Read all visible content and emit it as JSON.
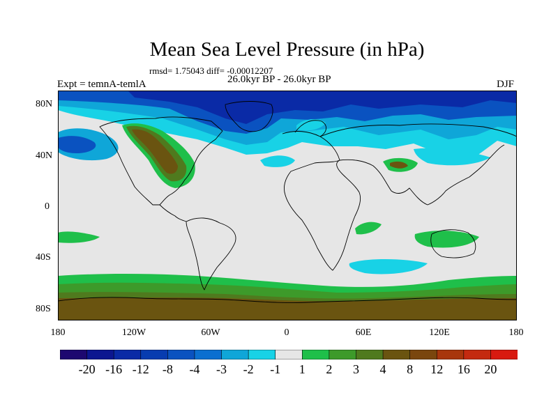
{
  "title": "Mean Sea Level Pressure (in hPa)",
  "stats": "rmsd= 1.75043 diff= -0.00012207",
  "period": "26.0kyr BP - 26.0kyr BP",
  "experiment": "Expt = temnA-temlA",
  "season": "DJF",
  "lat_labels": [
    "80N",
    "40N",
    "0",
    "40S",
    "80S"
  ],
  "lon_labels": [
    "180",
    "120W",
    "60W",
    "0",
    "60E",
    "120E",
    "180"
  ],
  "colorbar": {
    "labels": [
      "-20",
      "-16",
      "-12",
      "-8",
      "-4",
      "-3",
      "-2",
      "-1",
      "1",
      "2",
      "3",
      "4",
      "8",
      "12",
      "16",
      "20"
    ],
    "colors": [
      "#1d0870",
      "#0c1690",
      "#0a2aa6",
      "#073cb0",
      "#0a52c0",
      "#0b6fd0",
      "#0fa6d8",
      "#18d2e6",
      "#e6e6e6",
      "#1fbf4a",
      "#3d9a2a",
      "#4f7a1e",
      "#6a5410",
      "#7a460e",
      "#a8360c",
      "#c42a10",
      "#d81a10"
    ]
  },
  "colors": {
    "neutral": "#e6e6e6",
    "blue_mid": "#0a52c0",
    "blue_dark": "#0a2aa6",
    "cyan": "#18d2e6",
    "sky": "#0fa6d8",
    "green": "#1fbf4a",
    "green_dark": "#3d9a2a",
    "olive": "#4f7a1e",
    "brown": "#6a5410"
  }
}
